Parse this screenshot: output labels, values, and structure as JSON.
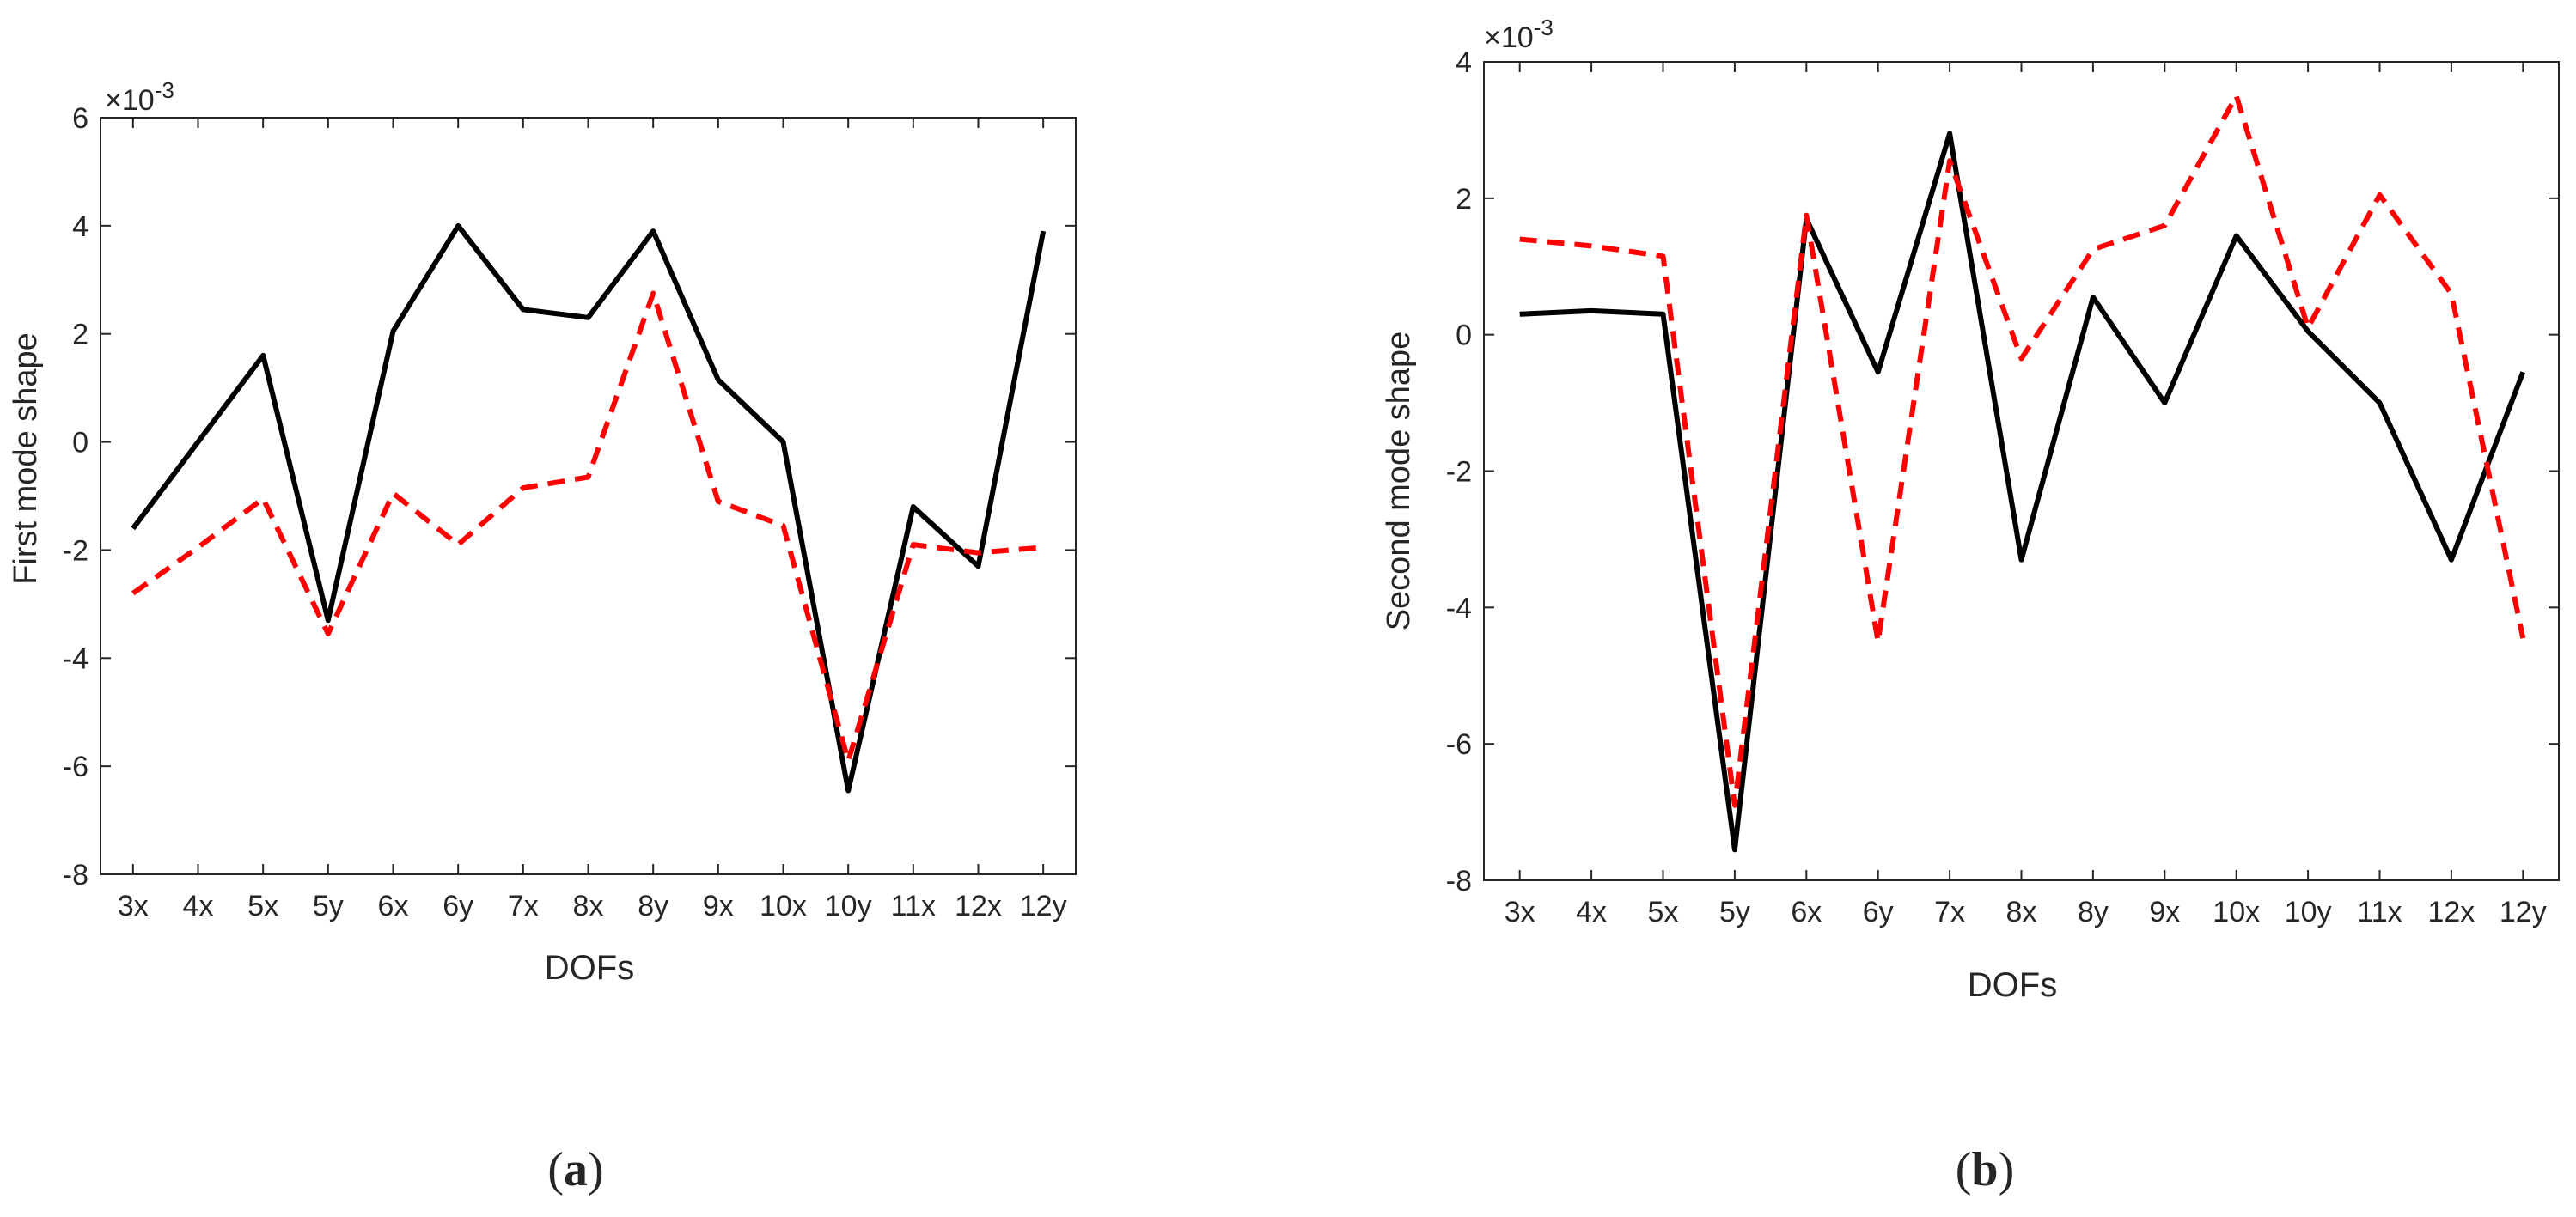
{
  "chart_data": [
    {
      "type": "line",
      "panel_label": "(a)",
      "panel_letter": "a",
      "xlabel": "DOFs",
      "ylabel": "First mode shape",
      "exponent_label": "×10",
      "exponent_power": "-3",
      "categories": [
        "3x",
        "4x",
        "5x",
        "5y",
        "6x",
        "6y",
        "7x",
        "8x",
        "8y",
        "9x",
        "10x",
        "10y",
        "11x",
        "12x",
        "12y"
      ],
      "ylim": [
        -8,
        6
      ],
      "yticks": [
        -8,
        -6,
        -4,
        -2,
        0,
        2,
        4,
        6
      ],
      "series": [
        {
          "name": "solid",
          "color": "#000000",
          "dash": "solid",
          "values": [
            -1.6,
            0.0,
            1.6,
            -3.3,
            2.05,
            4.0,
            2.45,
            2.3,
            3.9,
            1.15,
            0.0,
            -6.45,
            -1.2,
            -2.3,
            3.9
          ]
        },
        {
          "name": "dashed",
          "color": "#ff0000",
          "dash": "dashed",
          "values": [
            -2.8,
            -1.95,
            -1.05,
            -3.55,
            -0.95,
            -1.9,
            -0.85,
            -0.65,
            2.75,
            -1.1,
            -1.55,
            -5.9,
            -1.9,
            -2.05,
            -1.95
          ]
        }
      ]
    },
    {
      "type": "line",
      "panel_label": "(b)",
      "panel_letter": "b",
      "xlabel": "DOFs",
      "ylabel": "Second mode shape",
      "exponent_label": "×10",
      "exponent_power": "-3",
      "categories": [
        "3x",
        "4x",
        "5x",
        "5y",
        "6x",
        "6y",
        "7x",
        "8x",
        "8y",
        "9x",
        "10x",
        "10y",
        "11x",
        "12x",
        "12y"
      ],
      "ylim": [
        -8,
        4
      ],
      "yticks": [
        -8,
        -6,
        -4,
        -2,
        0,
        2,
        4
      ],
      "series": [
        {
          "name": "solid",
          "color": "#000000",
          "dash": "solid",
          "values": [
            0.3,
            0.35,
            0.3,
            -7.55,
            1.7,
            -0.55,
            2.95,
            -3.3,
            0.55,
            -1.0,
            1.45,
            0.05,
            -1.0,
            -3.3,
            -0.55
          ]
        },
        {
          "name": "dashed",
          "color": "#ff0000",
          "dash": "dashed",
          "values": [
            1.4,
            1.3,
            1.15,
            -6.9,
            1.75,
            -4.5,
            2.55,
            -0.35,
            1.25,
            1.6,
            3.5,
            0.1,
            2.05,
            0.6,
            -4.45
          ]
        }
      ]
    }
  ]
}
